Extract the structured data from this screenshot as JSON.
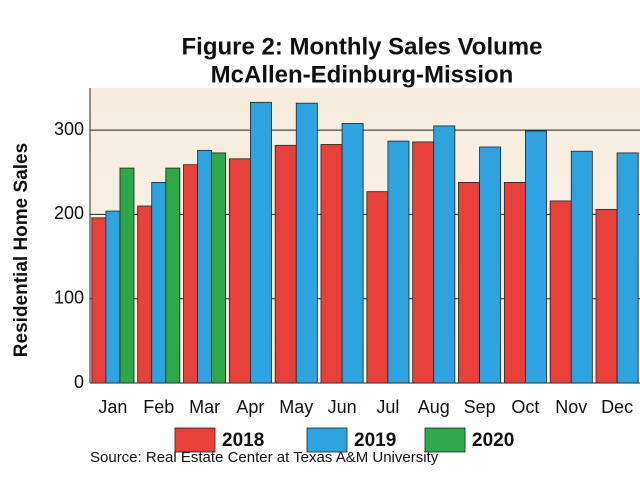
{
  "chart_data": {
    "type": "bar",
    "title": "Figure 2: Monthly Sales Volume",
    "subtitle": "McAllen-Edinburg-Mission",
    "y_label": "Residential Home Sales",
    "source": "Source: Real Estate Center at Texas A&M University",
    "categories": [
      "Jan",
      "Feb",
      "Mar",
      "Apr",
      "May",
      "Jun",
      "Jul",
      "Aug",
      "Sep",
      "Oct",
      "Nov",
      "Dec"
    ],
    "series": [
      {
        "name": "2018",
        "color": "#e8403a",
        "values": [
          196,
          210,
          259,
          266,
          282,
          283,
          227,
          286,
          238,
          238,
          216,
          206
        ]
      },
      {
        "name": "2019",
        "color": "#2ea3e0",
        "values": [
          204,
          238,
          276,
          333,
          332,
          308,
          287,
          305,
          280,
          299,
          275,
          273
        ]
      },
      {
        "name": "2020",
        "color": "#2ea84a",
        "values": [
          255,
          255,
          273,
          null,
          null,
          null,
          null,
          null,
          null,
          null,
          null,
          null
        ]
      }
    ],
    "ylim": [
      0,
      350
    ],
    "yticks": [
      0,
      100,
      200,
      300
    ],
    "grid": true
  }
}
